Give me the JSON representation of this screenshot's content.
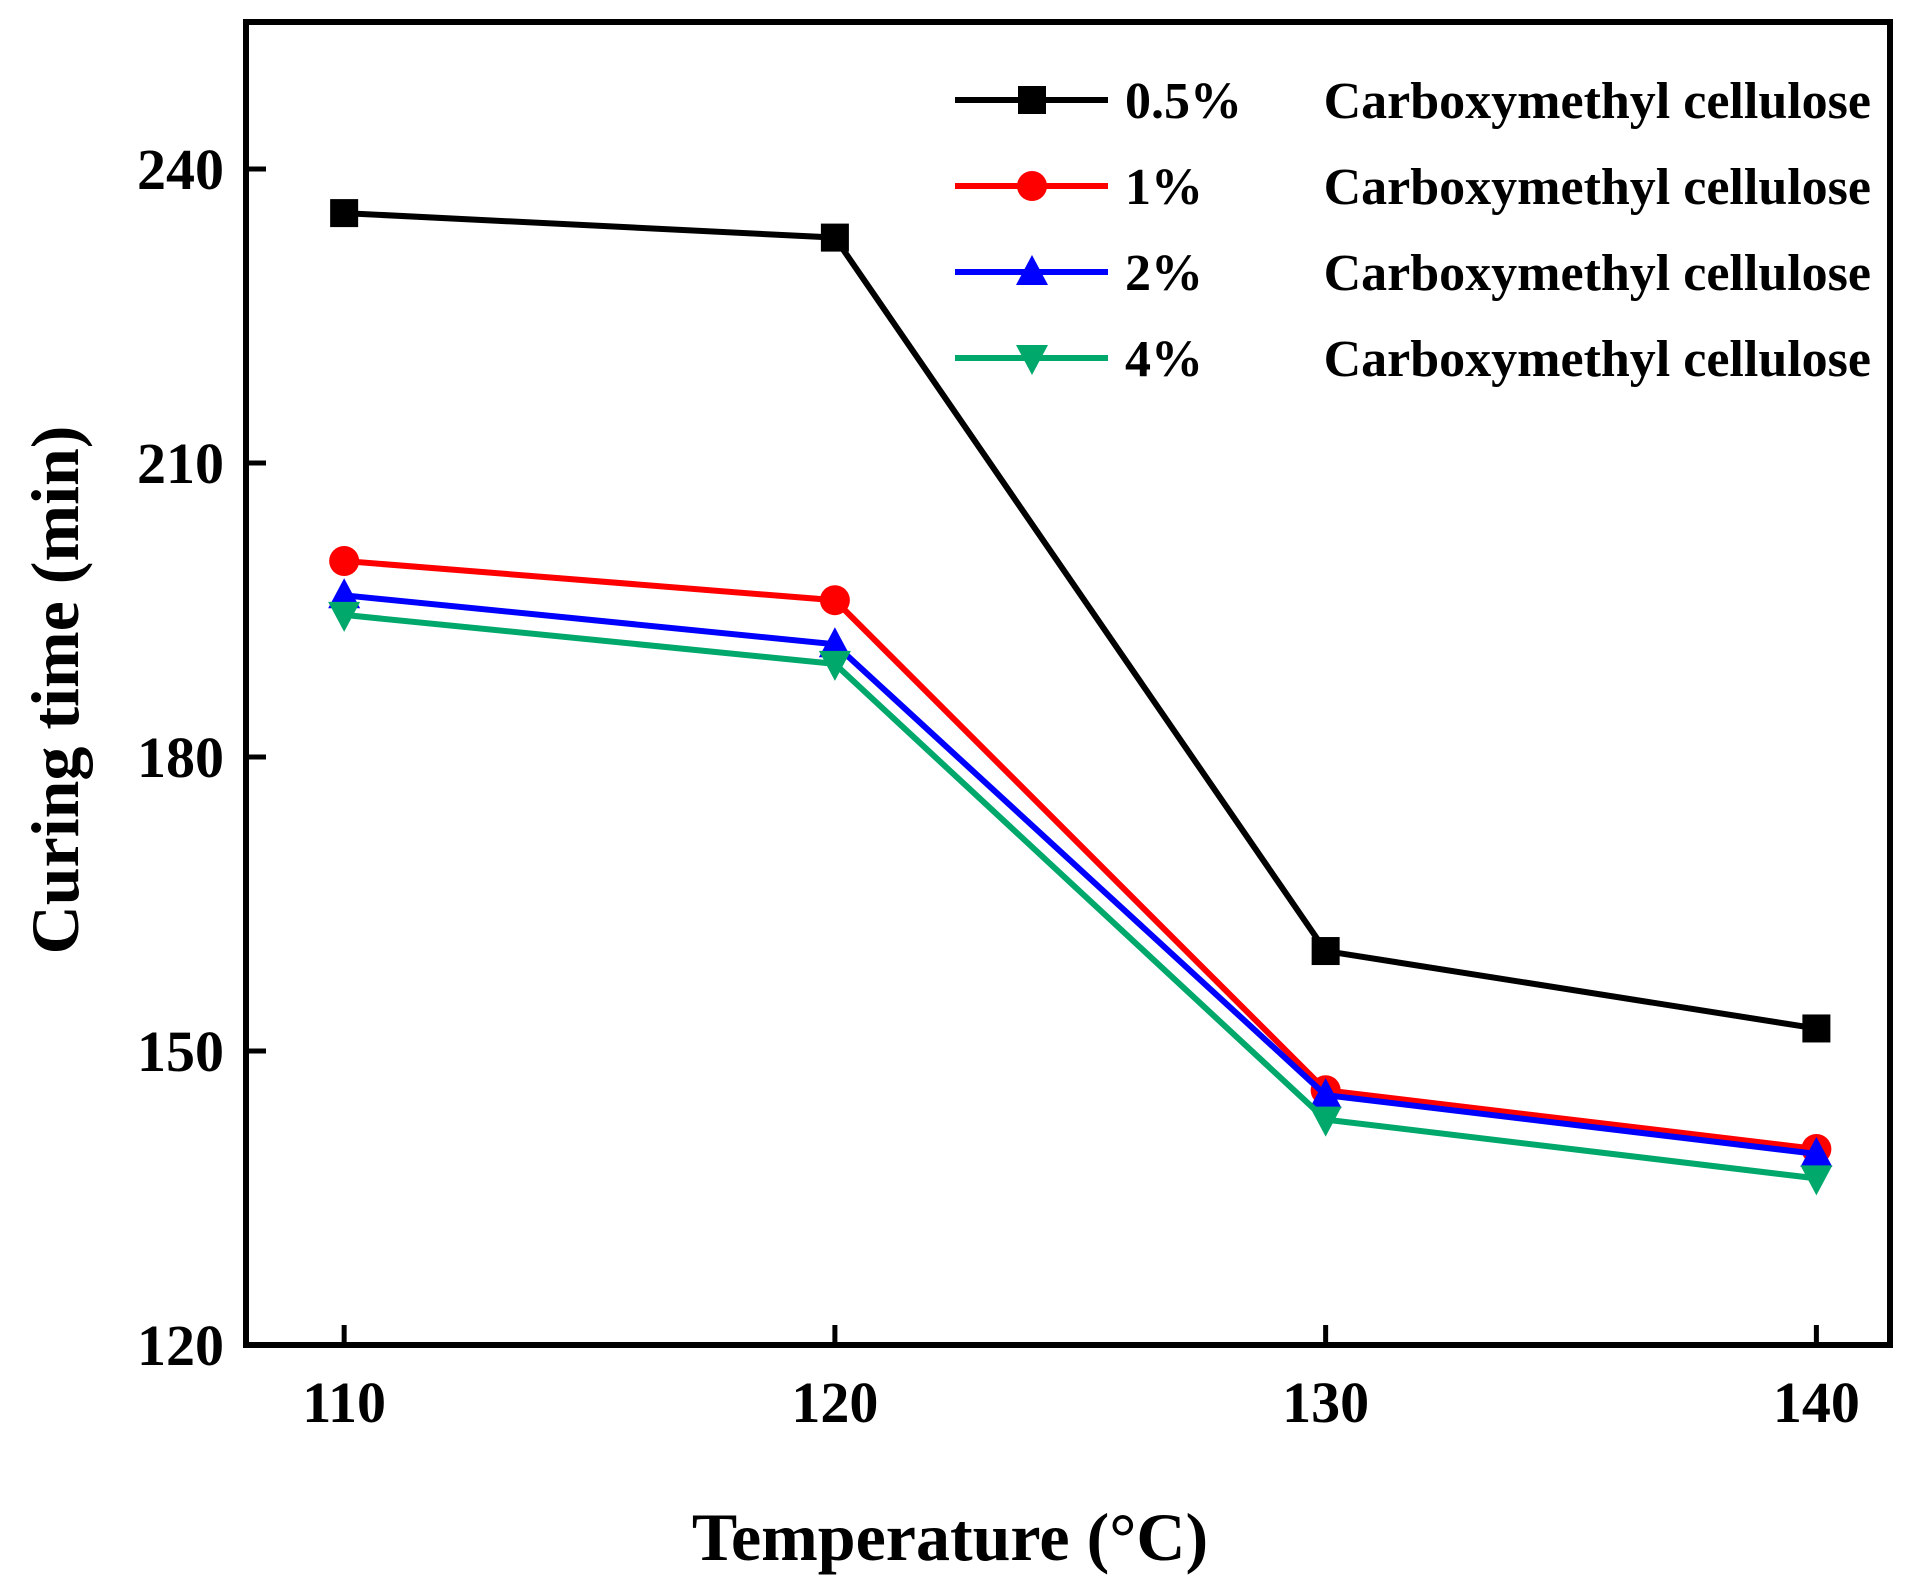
{
  "chart_data": {
    "type": "line",
    "title": "",
    "xlabel": "Temperature (°C)",
    "ylabel": "Curing time (min)",
    "x": [
      110,
      120,
      130,
      140
    ],
    "xticks": [
      "110",
      "120",
      "130",
      "140"
    ],
    "xlim": [
      108,
      141.5
    ],
    "yticks": [
      "120",
      "150",
      "180",
      "210",
      "240"
    ],
    "ylim": [
      120,
      255
    ],
    "grid": false,
    "legend_position": "top-right",
    "series": [
      {
        "name": "0.5% Carboxymethyl cellulose",
        "legend_pct": "0.5%",
        "legend_name": "Carboxymethyl cellulose",
        "color": "#000000",
        "marker": "square",
        "values": [
          235.5,
          233.0,
          160.2,
          152.3
        ]
      },
      {
        "name": "1% Carboxymethyl cellulose",
        "legend_pct": "1%",
        "legend_name": "Carboxymethyl cellulose",
        "color": "#ff0000",
        "marker": "circle",
        "values": [
          200.0,
          196.0,
          146.0,
          140.0
        ]
      },
      {
        "name": "2% Carboxymethyl cellulose",
        "legend_pct": "2%",
        "legend_name": "Carboxymethyl cellulose",
        "color": "#0000ff",
        "marker": "triangle-up",
        "values": [
          196.5,
          191.5,
          145.5,
          139.5
        ]
      },
      {
        "name": "4% Carboxymethyl cellulose",
        "legend_pct": "4%",
        "legend_name": "Carboxymethyl cellulose",
        "color": "#00a86b",
        "marker": "triangle-down",
        "values": [
          194.5,
          189.5,
          143.0,
          137.0
        ]
      }
    ]
  }
}
